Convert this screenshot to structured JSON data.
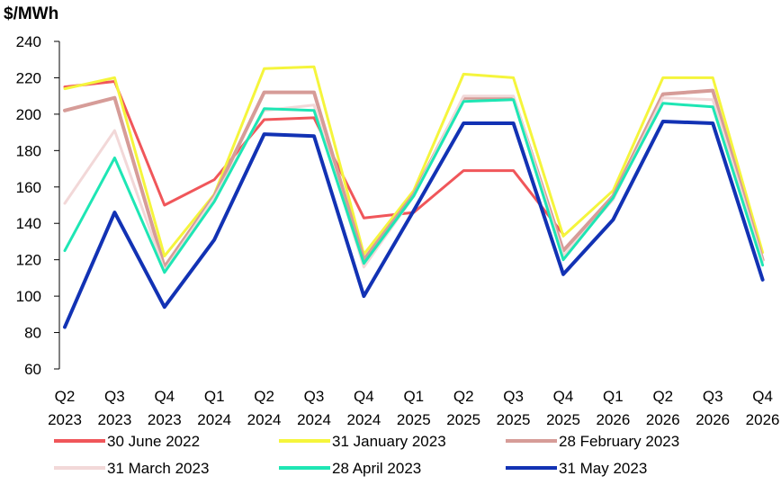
{
  "chart_data": {
    "type": "line",
    "title": "",
    "ylabel": "$/MWh",
    "xlabel": "",
    "ylim": [
      60,
      240
    ],
    "yticks": [
      60,
      80,
      100,
      120,
      140,
      160,
      180,
      200,
      220,
      240
    ],
    "grid": false,
    "legend_position": "bottom",
    "categories": [
      [
        "Q2",
        "2023"
      ],
      [
        "Q3",
        "2023"
      ],
      [
        "Q4",
        "2023"
      ],
      [
        "Q1",
        "2024"
      ],
      [
        "Q2",
        "2024"
      ],
      [
        "Q3",
        "2024"
      ],
      [
        "Q4",
        "2024"
      ],
      [
        "Q1",
        "2025"
      ],
      [
        "Q2",
        "2025"
      ],
      [
        "Q3",
        "2025"
      ],
      [
        "Q4",
        "2025"
      ],
      [
        "Q1",
        "2026"
      ],
      [
        "Q2",
        "2026"
      ],
      [
        "Q3",
        "2026"
      ],
      [
        "Q4",
        "2026"
      ]
    ],
    "series": [
      {
        "name": "30 June 2022",
        "color": "#f0565a",
        "width": 3,
        "values": [
          215,
          218,
          150,
          164,
          197,
          198,
          143,
          146,
          169,
          169,
          134,
          null,
          null,
          null,
          null
        ]
      },
      {
        "name": "31 January 2023",
        "color": "#f5f53c",
        "width": 3,
        "values": [
          214,
          220,
          122,
          156,
          225,
          226,
          123,
          158,
          222,
          220,
          133,
          158,
          220,
          220,
          124
        ]
      },
      {
        "name": "28 February 2023",
        "color": "#d69c98",
        "width": 4,
        "values": [
          202,
          209,
          116,
          155,
          212,
          212,
          120,
          156,
          209,
          209,
          125,
          155,
          211,
          213,
          120
        ]
      },
      {
        "name": "31 March 2023",
        "color": "#f2d8d8",
        "width": 3,
        "values": [
          151,
          191,
          114,
          154,
          202,
          205,
          116,
          155,
          210,
          210,
          122,
          153,
          209,
          208,
          119
        ]
      },
      {
        "name": "28 April 2023",
        "color": "#1ee6b4",
        "width": 3,
        "values": [
          125,
          176,
          113,
          152,
          203,
          202,
          118,
          155,
          207,
          208,
          120,
          154,
          206,
          204,
          117
        ]
      },
      {
        "name": "31 May 2023",
        "color": "#1232b4",
        "width": 4,
        "values": [
          83,
          146,
          94,
          131,
          189,
          188,
          100,
          147,
          195,
          195,
          112,
          142,
          196,
          195,
          109
        ]
      }
    ]
  }
}
